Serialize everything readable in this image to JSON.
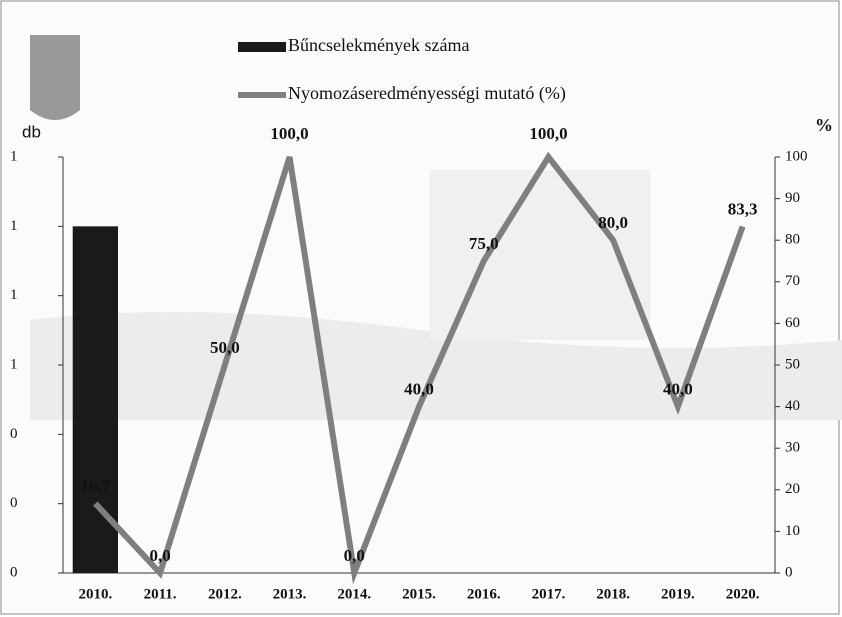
{
  "chart_data": {
    "type": "combo",
    "categories": [
      "2010.",
      "2011.",
      "2012.",
      "2013.",
      "2014.",
      "2015.",
      "2016.",
      "2017.",
      "2018.",
      "2019.",
      "2020."
    ],
    "series": [
      {
        "name": "Bűncselekmények száma",
        "type": "bar",
        "color": "#1a1a1a",
        "values": [
          1,
          0,
          0,
          0,
          0,
          0,
          0,
          0,
          0,
          0,
          0
        ]
      },
      {
        "name": "Nyomozáseredményességi mutató (%)",
        "type": "line",
        "axis": "y2",
        "color": "#7f7f7f",
        "values": [
          16.7,
          0.0,
          50.0,
          100.0,
          0.0,
          40.0,
          75.0,
          100.0,
          80.0,
          40.0,
          83.3
        ],
        "value_labels": [
          "16,7",
          "0,0",
          "50,0",
          "100,0",
          "0,0",
          "40,0",
          "75,0",
          "100,0",
          "80,0",
          "40,0",
          "83,3"
        ]
      }
    ],
    "ylabel": "db",
    "y2label": "%",
    "ylim": [
      0,
      1.2
    ],
    "yticks": [
      {
        "value": 0,
        "label": "0"
      },
      {
        "value": 0.2,
        "label": "0"
      },
      {
        "value": 0.4,
        "label": "0"
      },
      {
        "value": 0.6,
        "label": "1"
      },
      {
        "value": 0.8,
        "label": "1"
      },
      {
        "value": 1.0,
        "label": "1"
      },
      {
        "value": 1.2,
        "label": "1"
      }
    ],
    "y2lim": [
      0,
      100
    ],
    "y2ticks": [
      0,
      10,
      20,
      30,
      40,
      50,
      60,
      70,
      80,
      90,
      100
    ]
  }
}
